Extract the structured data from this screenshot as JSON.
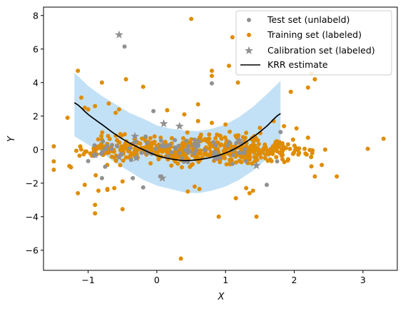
{
  "chart_data": {
    "type": "scatter",
    "xlabel": "X",
    "ylabel": "Y",
    "xlim": [
      -1.65,
      3.5
    ],
    "ylim": [
      -7.2,
      8.5
    ],
    "xticks": [
      -1,
      0,
      1,
      2,
      3
    ],
    "xtick_labels": [
      "−1",
      "0",
      "1",
      "2",
      "3"
    ],
    "yticks": [
      -6,
      -4,
      -2,
      0,
      2,
      4,
      6,
      8
    ],
    "ytick_labels": [
      "−6",
      "−4",
      "−2",
      "0",
      "2",
      "4",
      "6",
      "8"
    ],
    "grid": false,
    "legend_position": "top-right",
    "colors": {
      "test": "#919191",
      "train": "#e08c00",
      "calib": "#919191",
      "krr": "#000000",
      "band": "#c3e1f6"
    },
    "legend": [
      {
        "label": "Test set (unlabeld)",
        "marker": "dot",
        "color": "#919191"
      },
      {
        "label": "Training set (labeled)",
        "marker": "dot",
        "color": "#e08c00"
      },
      {
        "label": "Calibration set (labeled)",
        "marker": "star",
        "color": "#919191"
      },
      {
        "label": "KRR estimate",
        "marker": "line",
        "color": "#000000"
      }
    ],
    "series": [
      {
        "name": "KRR estimate",
        "kind": "line",
        "x": [
          -1.2,
          -1.0,
          -0.8,
          -0.6,
          -0.4,
          -0.2,
          0.0,
          0.2,
          0.4,
          0.6,
          0.8,
          1.0,
          1.2,
          1.4,
          1.6,
          1.8
        ],
        "y": [
          2.8,
          2.1,
          1.5,
          0.9,
          0.4,
          0.0,
          -0.35,
          -0.55,
          -0.65,
          -0.6,
          -0.45,
          -0.2,
          0.2,
          0.75,
          1.4,
          2.15
        ]
      },
      {
        "name": "band",
        "kind": "band",
        "x": [
          -1.2,
          -1.0,
          -0.8,
          -0.6,
          -0.4,
          -0.2,
          0.0,
          0.2,
          0.4,
          0.6,
          0.8,
          1.0,
          1.2,
          1.4,
          1.6,
          1.8
        ],
        "upper": [
          4.6,
          3.8,
          3.2,
          2.7,
          2.2,
          1.85,
          1.45,
          1.25,
          1.15,
          1.1,
          1.25,
          1.5,
          1.95,
          2.55,
          3.3,
          4.1
        ],
        "lower": [
          0.8,
          0.3,
          -0.2,
          -0.8,
          -1.3,
          -1.8,
          -2.15,
          -2.35,
          -2.55,
          -2.6,
          -2.45,
          -2.2,
          -1.8,
          -1.25,
          -0.55,
          0.1
        ]
      },
      {
        "name": "Calibration set (labeled)",
        "kind": "star",
        "x": [
          -0.55,
          0.1,
          0.33,
          -0.32,
          -0.55,
          -0.3,
          0.08,
          0.55,
          0.85,
          1.2,
          1.45,
          0.6,
          -0.9
        ],
        "y": [
          6.85,
          1.55,
          1.4,
          0.8,
          -0.45,
          -0.5,
          -1.7,
          0.3,
          -0.5,
          0.55,
          -0.95,
          0.45,
          -0.3
        ]
      }
    ],
    "outliers": {
      "train": [
        [
          0.5,
          7.8
        ],
        [
          1.1,
          6.7
        ],
        [
          0.35,
          -6.5
        ],
        [
          -1.15,
          4.7
        ],
        [
          -0.8,
          4.0
        ],
        [
          -0.9,
          2.6
        ],
        [
          -0.55,
          2.4
        ],
        [
          -0.2,
          3.75
        ],
        [
          0.8,
          4.7
        ],
        [
          0.8,
          4.4
        ],
        [
          1.05,
          5.0
        ],
        [
          1.18,
          4.0
        ],
        [
          2.25,
          4.55
        ],
        [
          2.3,
          4.2
        ],
        [
          2.2,
          3.7
        ],
        [
          1.95,
          3.45
        ],
        [
          -1.1,
          3.1
        ],
        [
          -1.05,
          2.5
        ],
        [
          -1.0,
          2.4
        ],
        [
          -0.7,
          2.75
        ],
        [
          -0.6,
          2.2
        ],
        [
          0.15,
          2.35
        ],
        [
          0.4,
          2.1
        ],
        [
          0.6,
          2.7
        ],
        [
          0.6,
          1.7
        ],
        [
          0.8,
          1.6
        ],
        [
          1.0,
          1.5
        ],
        [
          1.5,
          1.3
        ],
        [
          1.7,
          1.7
        ],
        [
          1.85,
          1.4
        ],
        [
          -1.3,
          1.9
        ],
        [
          -1.5,
          0.2
        ],
        [
          -1.5,
          -0.7
        ],
        [
          -1.5,
          -1.2
        ],
        [
          -1.25,
          -1.05
        ],
        [
          -1.15,
          -2.6
        ],
        [
          -1.05,
          -2.1
        ],
        [
          -0.85,
          -2.45
        ],
        [
          -0.9,
          -3.3
        ],
        [
          -0.9,
          -3.8
        ],
        [
          -0.72,
          -2.4
        ],
        [
          -0.72,
          -2.35
        ],
        [
          -0.62,
          -2.3
        ],
        [
          -0.5,
          -3.55
        ],
        [
          -0.5,
          -1.9
        ],
        [
          0.45,
          -2.5
        ],
        [
          0.55,
          -2.2
        ],
        [
          0.62,
          -2.35
        ],
        [
          0.9,
          -4.0
        ],
        [
          1.15,
          -2.9
        ],
        [
          1.3,
          -2.3
        ],
        [
          1.4,
          -2.45
        ],
        [
          1.45,
          -4.0
        ],
        [
          1.35,
          -2.6
        ],
        [
          1.3,
          1.0
        ],
        [
          2.25,
          -1.0
        ],
        [
          2.3,
          -1.6
        ],
        [
          2.62,
          -1.6
        ],
        [
          2.15,
          0.05
        ],
        [
          2.45,
          0.0
        ],
        [
          3.3,
          0.65
        ],
        [
          3.07,
          0.05
        ],
        [
          -0.45,
          4.2
        ],
        [
          -0.1,
          0.05
        ]
      ],
      "test": [
        [
          -0.47,
          6.15
        ],
        [
          0.8,
          3.95
        ],
        [
          -0.05,
          2.3
        ],
        [
          1.8,
          1.05
        ],
        [
          -0.35,
          -1.7
        ],
        [
          -0.2,
          -2.25
        ],
        [
          1.6,
          -2.1
        ],
        [
          1.3,
          -0.7
        ],
        [
          1.1,
          -0.85
        ],
        [
          0.45,
          -0.75
        ],
        [
          1.75,
          -0.7
        ],
        [
          0.05,
          -1.6
        ],
        [
          -0.8,
          -1.7
        ]
      ]
    },
    "train_cluster": {
      "x_range": [
        -1.3,
        2.45
      ],
      "y_center": 0.0,
      "y_spread": 0.4,
      "count": 560,
      "seed": 11
    },
    "test_cluster": {
      "x_range": [
        -1.0,
        1.3
      ],
      "y_center": 0.0,
      "y_spread": 0.35,
      "count": 70,
      "seed": 23
    }
  }
}
